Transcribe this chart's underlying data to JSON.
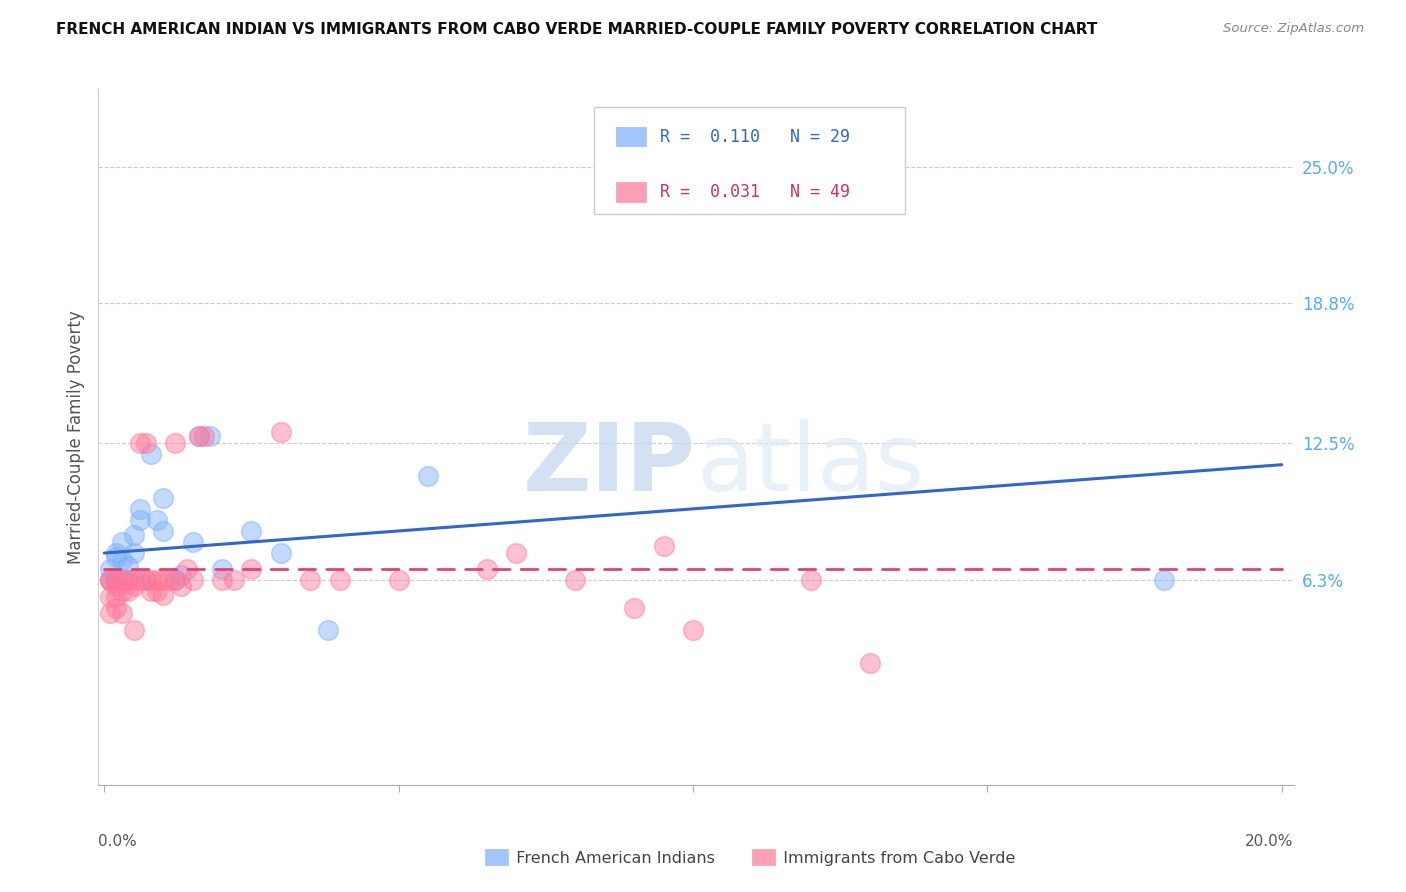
{
  "title": "FRENCH AMERICAN INDIAN VS IMMIGRANTS FROM CABO VERDE MARRIED-COUPLE FAMILY POVERTY CORRELATION CHART",
  "source": "Source: ZipAtlas.com",
  "ylabel": "Married-Couple Family Poverty",
  "ytick_labels": [
    "25.0%",
    "18.8%",
    "12.5%",
    "6.3%"
  ],
  "ytick_values": [
    0.25,
    0.188,
    0.125,
    0.063
  ],
  "legend_label1": "French American Indians",
  "legend_label2": "Immigrants from Cabo Verde",
  "R1": "0.110",
  "N1": "29",
  "R2": "0.031",
  "N2": "49",
  "color_blue": "#7aaeff",
  "color_pink": "#ff7799",
  "color_blue_line": "#3366cc",
  "color_pink_line": "#dd4477",
  "watermark_zip": "ZIP",
  "watermark_atlas": "atlas",
  "blue_scatter_x": [
    0.001,
    0.001,
    0.002,
    0.002,
    0.002,
    0.003,
    0.003,
    0.004,
    0.004,
    0.005,
    0.005,
    0.006,
    0.006,
    0.007,
    0.008,
    0.009,
    0.01,
    0.01,
    0.012,
    0.013,
    0.015,
    0.016,
    0.018,
    0.02,
    0.025,
    0.03,
    0.038,
    0.055,
    0.18
  ],
  "blue_scatter_y": [
    0.068,
    0.063,
    0.075,
    0.073,
    0.063,
    0.08,
    0.072,
    0.069,
    0.063,
    0.083,
    0.075,
    0.095,
    0.09,
    0.063,
    0.12,
    0.09,
    0.1,
    0.085,
    0.063,
    0.065,
    0.08,
    0.128,
    0.128,
    0.068,
    0.085,
    0.075,
    0.04,
    0.11,
    0.063
  ],
  "pink_scatter_x": [
    0.001,
    0.001,
    0.001,
    0.001,
    0.002,
    0.002,
    0.002,
    0.002,
    0.003,
    0.003,
    0.003,
    0.004,
    0.004,
    0.005,
    0.005,
    0.005,
    0.006,
    0.006,
    0.007,
    0.007,
    0.008,
    0.008,
    0.009,
    0.009,
    0.01,
    0.01,
    0.011,
    0.012,
    0.012,
    0.013,
    0.014,
    0.015,
    0.016,
    0.017,
    0.02,
    0.022,
    0.025,
    0.03,
    0.035,
    0.04,
    0.05,
    0.065,
    0.07,
    0.08,
    0.09,
    0.095,
    0.1,
    0.12,
    0.13
  ],
  "pink_scatter_y": [
    0.063,
    0.063,
    0.055,
    0.048,
    0.063,
    0.06,
    0.055,
    0.05,
    0.063,
    0.058,
    0.048,
    0.063,
    0.058,
    0.063,
    0.06,
    0.04,
    0.125,
    0.063,
    0.125,
    0.063,
    0.063,
    0.058,
    0.063,
    0.058,
    0.063,
    0.056,
    0.063,
    0.125,
    0.063,
    0.06,
    0.068,
    0.063,
    0.128,
    0.128,
    0.063,
    0.063,
    0.068,
    0.13,
    0.063,
    0.063,
    0.063,
    0.068,
    0.075,
    0.063,
    0.05,
    0.078,
    0.04,
    0.063,
    0.025
  ],
  "xmin": 0.0,
  "xmax": 0.2,
  "ymin": -0.03,
  "ymax": 0.285
}
